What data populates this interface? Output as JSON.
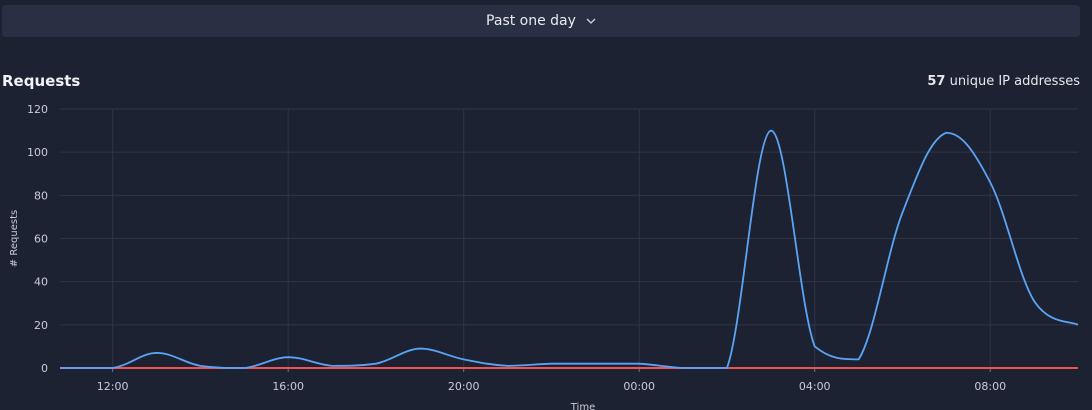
{
  "range_selector": {
    "label": "Past one day",
    "icon": "chevron-down-icon"
  },
  "header": {
    "title": "Requests",
    "unique_ip_count": "57",
    "unique_ip_label": "unique IP addresses"
  },
  "chart_data": {
    "type": "line",
    "xlabel": "Time",
    "ylabel": "# Requests",
    "ylim": [
      0,
      120
    ],
    "yticks": [
      0,
      20,
      40,
      60,
      80,
      100,
      120
    ],
    "xlim_hours": [
      10.8,
      34.0
    ],
    "xticks": [
      {
        "label": "12:00",
        "hour": 12
      },
      {
        "label": "16:00",
        "hour": 16
      },
      {
        "label": "20:00",
        "hour": 20
      },
      {
        "label": "00:00",
        "hour": 24
      },
      {
        "label": "04:00",
        "hour": 28
      },
      {
        "label": "08:00",
        "hour": 32
      }
    ],
    "grid": true,
    "series": [
      {
        "color": "#5ba4f5",
        "points": [
          [
            10.8,
            0
          ],
          [
            12,
            0
          ],
          [
            13,
            7
          ],
          [
            14,
            1
          ],
          [
            15,
            0
          ],
          [
            16,
            5
          ],
          [
            17,
            1
          ],
          [
            18,
            2
          ],
          [
            19,
            9
          ],
          [
            20,
            4
          ],
          [
            21,
            1
          ],
          [
            22,
            2
          ],
          [
            23,
            2
          ],
          [
            24,
            2
          ],
          [
            25,
            0
          ],
          [
            26,
            0
          ],
          [
            27,
            110
          ],
          [
            28,
            10
          ],
          [
            29,
            4
          ],
          [
            30,
            72
          ],
          [
            31,
            109
          ],
          [
            32,
            86
          ],
          [
            33,
            31
          ],
          [
            34,
            20
          ]
        ]
      },
      {
        "color": "#ef5350",
        "points": [
          [
            10.8,
            0
          ],
          [
            34,
            0
          ]
        ]
      }
    ]
  }
}
